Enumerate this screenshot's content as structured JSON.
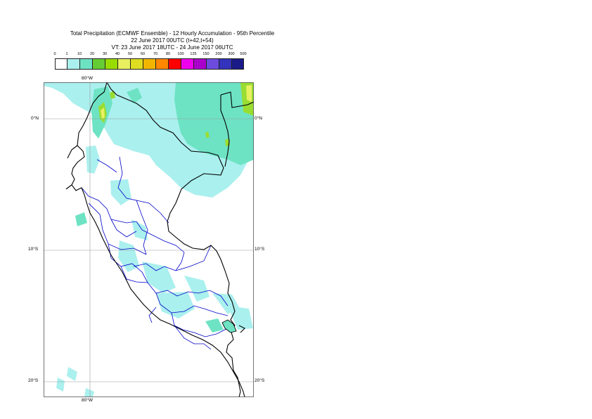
{
  "title": {
    "line1": "Total Precipitation (ECMWF Ensemble) - 12 Hourly Accumulation - 95th Percentile",
    "line2": "22 June 2017 00UTC (t+42,t+54)",
    "line3": "VT: 23 June 2017 18UTC - 24 June 2017 06UTC"
  },
  "legend": {
    "ticks": [
      "0",
      "1",
      "10",
      "20",
      "30",
      "40",
      "50",
      "60",
      "70",
      "80",
      "100",
      "125",
      "150",
      "200",
      "300",
      "500"
    ],
    "colors": [
      "#ffffff",
      "#aaf0ee",
      "#6de3c4",
      "#66cc33",
      "#99dd00",
      "#e8f060",
      "#dddd22",
      "#f2b600",
      "#ff8800",
      "#ff0000",
      "#ee00ee",
      "#aa00cc",
      "#6d4bdf",
      "#3333bb",
      "#1a1a88",
      "#0a0a44"
    ]
  },
  "axes": {
    "lon_top": "80°W",
    "lon_bottom": "80°W",
    "lat_labels": [
      "0°N",
      "10°S",
      "20°S"
    ]
  },
  "map_colors": {
    "light_precip": "#aaf0ee",
    "moderate_precip": "#6de3c4",
    "heavy_precip": "#99dd33",
    "peak_precip": "#e8f060",
    "coastline": "#000000",
    "admin_borders": "#0000cc",
    "gridlines": "#9a9a9a"
  }
}
